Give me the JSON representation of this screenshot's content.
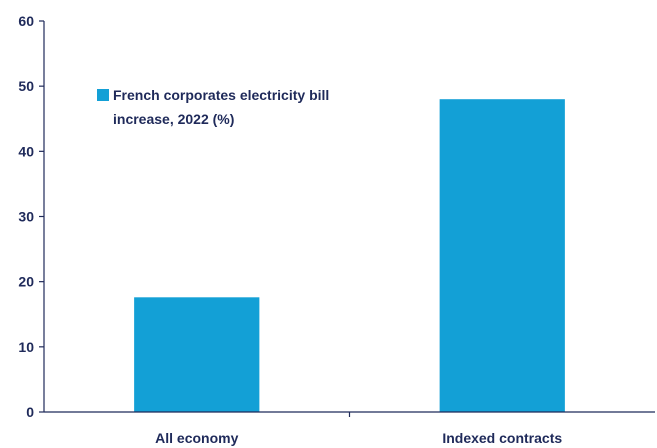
{
  "chart_data": {
    "type": "bar",
    "categories": [
      "All economy",
      "Indexed contracts"
    ],
    "series": [
      {
        "name": "French corporates electricity bill increase, 2022 (%)",
        "values": [
          17.6,
          48.0
        ],
        "color": "#13a0d6"
      }
    ],
    "ylim": [
      0,
      60
    ],
    "yticks": [
      "0",
      "10",
      "20",
      "30",
      "40",
      "50",
      "60"
    ],
    "legend": {
      "line1": "French corporates electricity bill",
      "line2": "increase, 2022 (%)",
      "placement": "top-left"
    },
    "grid": false
  }
}
